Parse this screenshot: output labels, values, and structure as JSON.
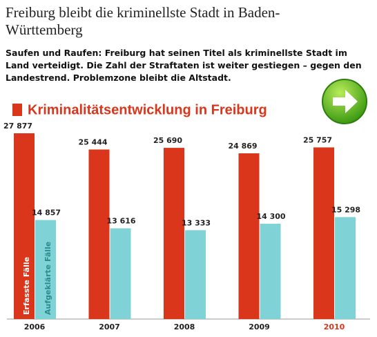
{
  "header": {
    "title": "Freiburg bleibt die kriminellste Stadt in Baden-Württemberg",
    "lead": "Saufen und Raufen: Freiburg hat seinen Titel als kriminellste Stadt im Land verteidigt. Die Zahl der Straftaten ist weiter gestiegen – gegen den Landestrend. Problemzone bleibt die Altstadt."
  },
  "chart_data": {
    "type": "bar",
    "title": "Kriminalitätsentwicklung in Freiburg",
    "categories": [
      "2006",
      "2007",
      "2008",
      "2009",
      "2010"
    ],
    "category_colors": [
      "#222222",
      "#222222",
      "#222222",
      "#222222",
      "#d9361c"
    ],
    "series": [
      {
        "name": "Erfasste Fälle",
        "color": "#d9361c",
        "values": [
          27877,
          25444,
          25690,
          24869,
          25757
        ],
        "value_labels": [
          "27 877",
          "25 444",
          "25 690",
          "24 869",
          "25 757"
        ]
      },
      {
        "name": "Aufgeklärte Fälle",
        "color": "#7fd3d6",
        "values": [
          14857,
          13616,
          13333,
          14300,
          15298
        ],
        "value_labels": [
          "14 857",
          "13 616",
          "13 333",
          "14 300",
          "15 298"
        ]
      }
    ]
  }
}
